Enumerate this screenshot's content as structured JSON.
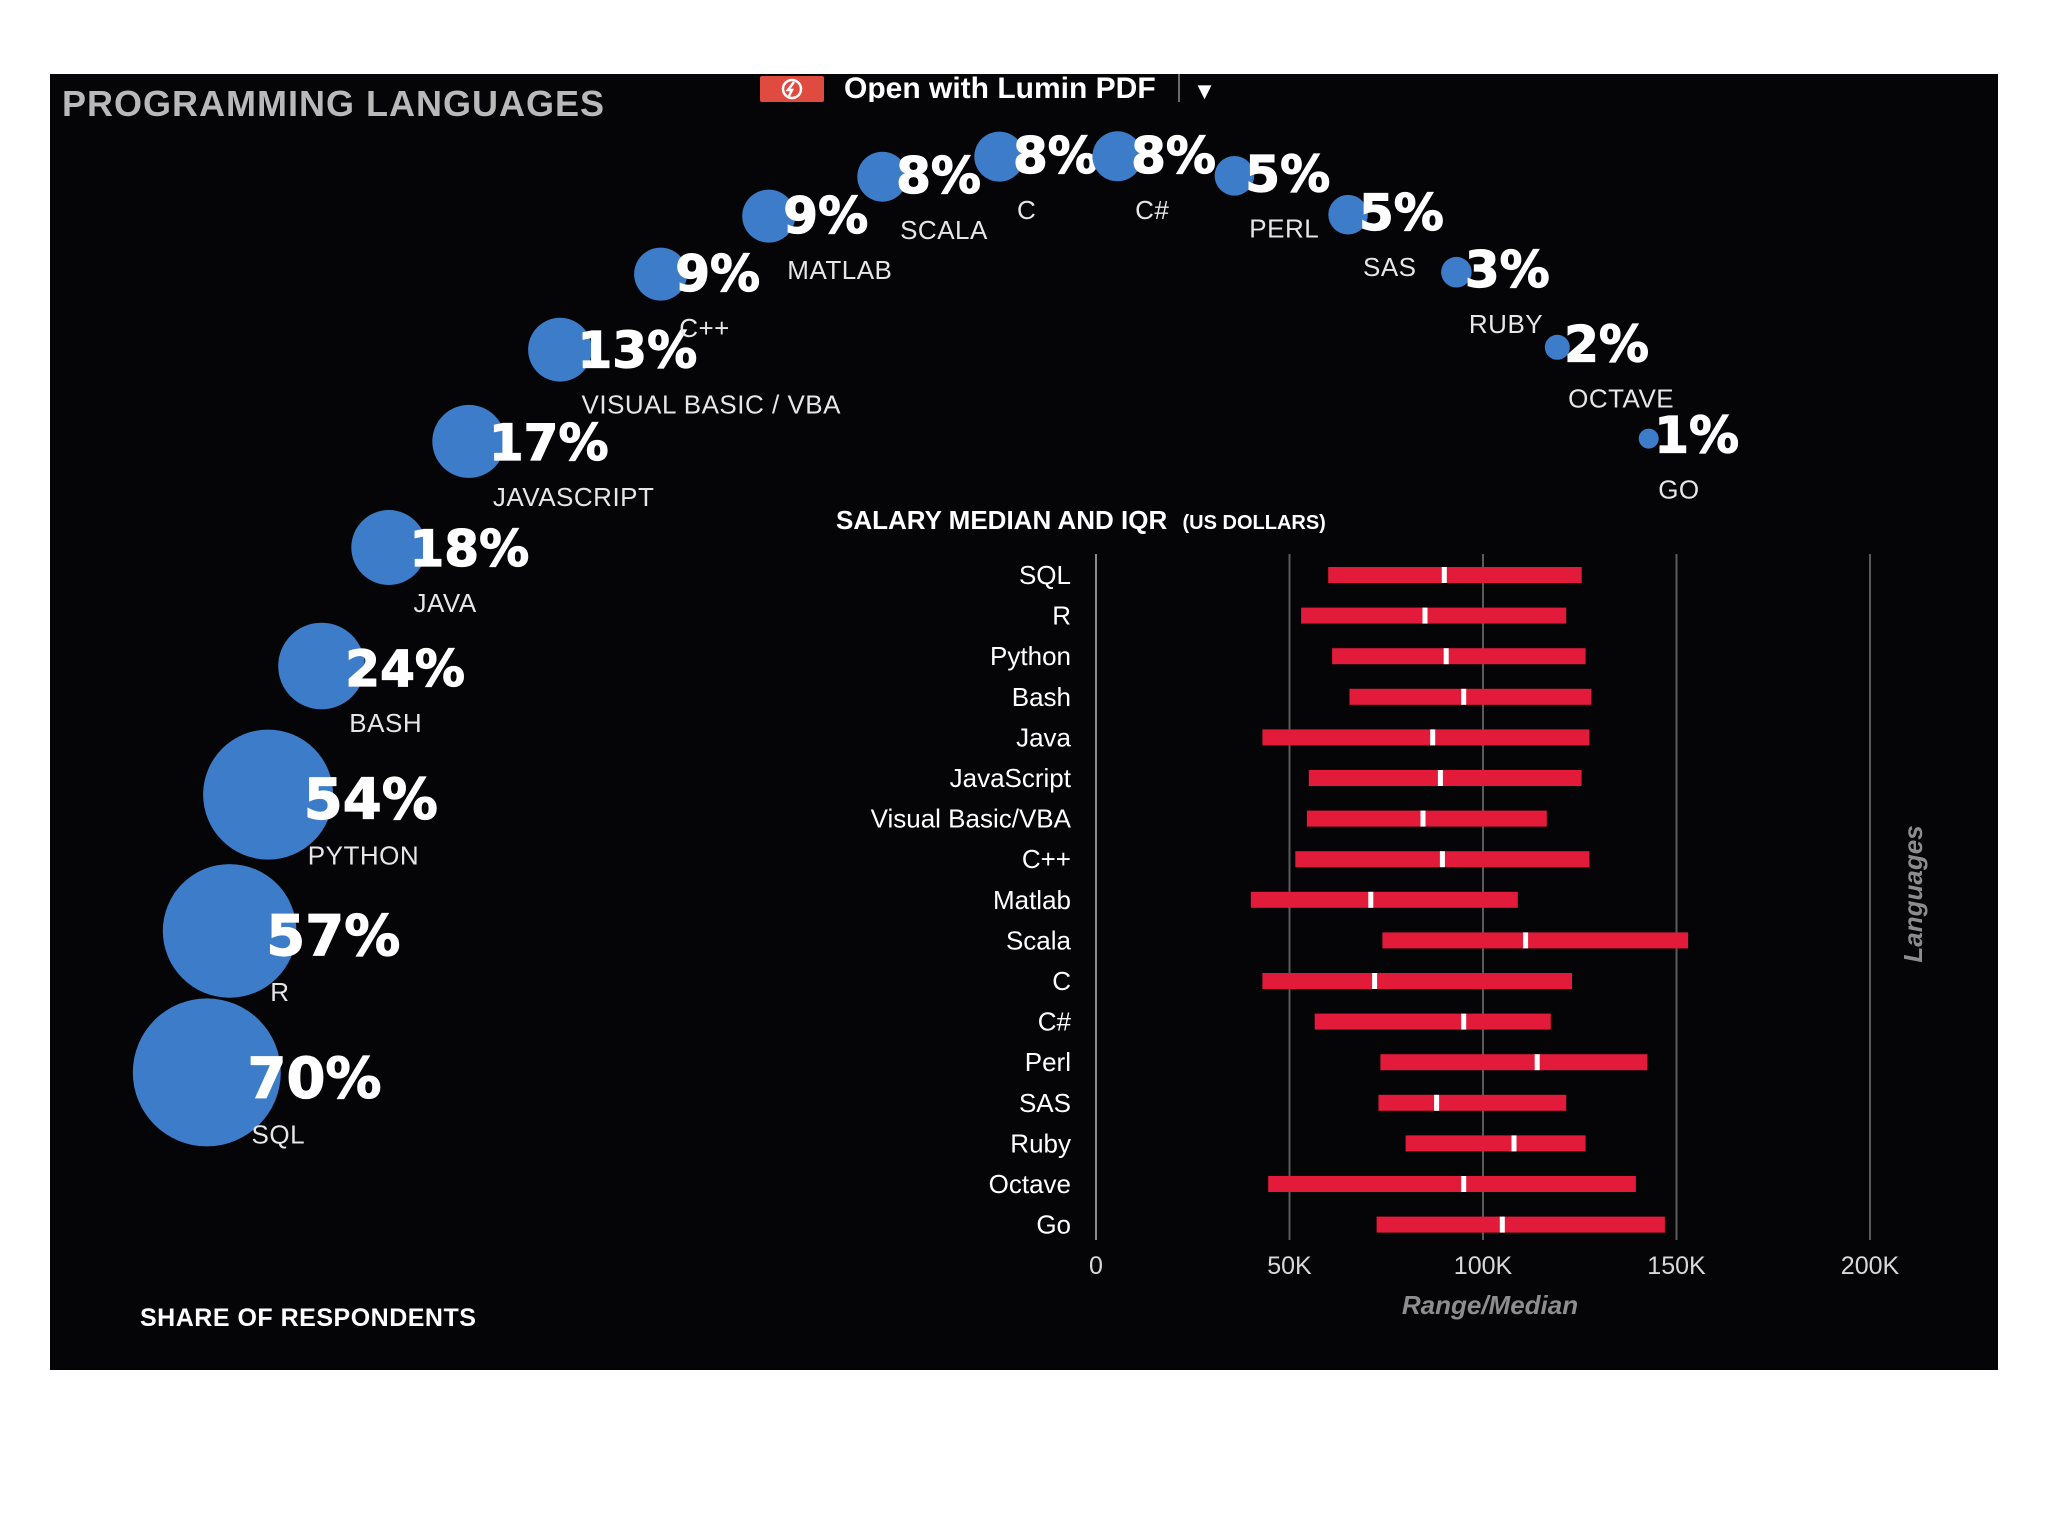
{
  "viewer_bar": {
    "label": "Open with Lumin PDF",
    "icon": "lumin-pdf-icon",
    "chevron": "chevron-down-icon"
  },
  "chart_data": [
    {
      "type": "bubble",
      "title": "PROGRAMMING LANGUAGES",
      "xlabel": "SHARE OF RESPONDENTS",
      "color": "#3d7cc9",
      "categories": [
        "SQL",
        "R",
        "PYTHON",
        "BASH",
        "JAVA",
        "JAVASCRIPT",
        "VISUAL BASIC / VBA",
        "C++",
        "MATLAB",
        "SCALA",
        "C",
        "C#",
        "PERL",
        "SAS",
        "RUBY",
        "OCTAVE",
        "GO"
      ],
      "values": [
        70,
        57,
        54,
        24,
        18,
        17,
        13,
        9,
        9,
        8,
        8,
        8,
        5,
        5,
        3,
        2,
        1
      ],
      "value_labels": [
        "70%",
        "57%",
        "54%",
        "24%",
        "18%",
        "17%",
        "13%",
        "9%",
        "9%",
        "8%",
        "8%",
        "8%",
        "5%",
        "5%",
        "3%",
        "2%",
        "1%"
      ]
    },
    {
      "type": "range-bar",
      "title": "SALARY MEDIAN AND IQR",
      "title_unit": "(US DOLLARS)",
      "xlabel": "Range/Median",
      "ylabel": "Languages",
      "xlim": [
        0,
        200000
      ],
      "xticks": [
        0,
        50000,
        100000,
        150000,
        200000
      ],
      "xtick_labels": [
        "0",
        "50K",
        "100K",
        "150K",
        "200K"
      ],
      "grid": true,
      "bar_color": "#e31b3a",
      "median_color": "#ffffff",
      "categories": [
        "SQL",
        "R",
        "Python",
        "Bash",
        "Java",
        "JavaScript",
        "Visual Basic/VBA",
        "C++",
        "Matlab",
        "Scala",
        "C",
        "C#",
        "Perl",
        "SAS",
        "Ruby",
        "Octave",
        "Go"
      ],
      "q1": [
        60000,
        53000,
        61000,
        65500,
        43000,
        55000,
        54500,
        51500,
        40000,
        74000,
        43000,
        56500,
        73500,
        73000,
        80000,
        44500,
        72500
      ],
      "median": [
        90000,
        85000,
        90500,
        95000,
        87000,
        89000,
        84500,
        89500,
        71000,
        111000,
        72000,
        95000,
        114000,
        88000,
        108000,
        95000,
        105000
      ],
      "q3": [
        125500,
        121500,
        126500,
        128000,
        127500,
        125500,
        116500,
        127500,
        109000,
        153000,
        123000,
        117500,
        142500,
        121500,
        126500,
        139500,
        147000
      ]
    }
  ]
}
